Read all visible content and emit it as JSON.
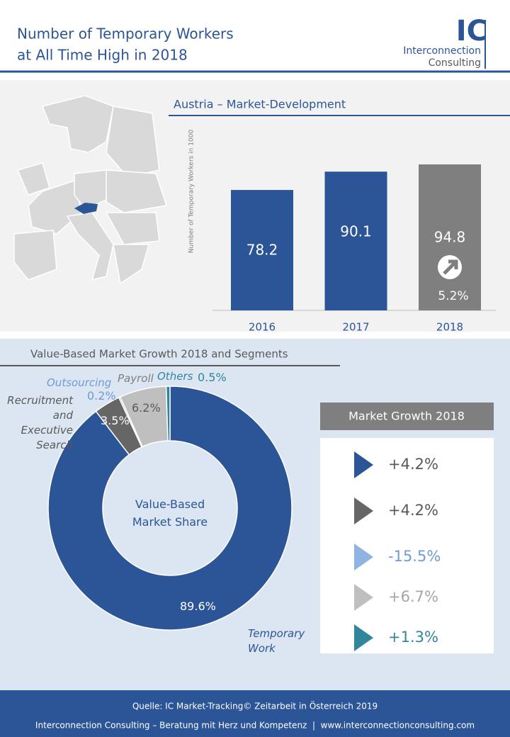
{
  "header": {
    "title_lines": [
      "Number of Temporary Workers",
      "at All Time High in 2018"
    ],
    "logo_mark": "IC",
    "logo_lines": [
      "Interconnection",
      "Consulting"
    ]
  },
  "chart_data": [
    {
      "type": "bar",
      "title": "Austria – Market-Development",
      "y_label": "Number of Temporary Workers in 1000",
      "categories": [
        "2016",
        "2017",
        "2018"
      ],
      "values": [
        78.2,
        90.1,
        94.8
      ],
      "colors": [
        "#2b5597",
        "#2b5597",
        "#7f7f7f"
      ],
      "annotation": "5.2%"
    },
    {
      "type": "pie",
      "title": "Value-Based Market Growth 2018 and Segments",
      "center_label": "Value-Based Market Share",
      "categories": [
        "Temporary Work",
        "Recruitment and Executive Search",
        "Outsourcing",
        "Payroll",
        "Others"
      ],
      "values": [
        89.6,
        3.5,
        0.2,
        6.2,
        0.5
      ],
      "value_labels": [
        "89.6%",
        "3.5%",
        "0.2%",
        "6.2%",
        "0.5%"
      ],
      "colors": [
        "#2b5597",
        "#666666",
        "#8fb4e3",
        "#bfbfbf",
        "#31859c"
      ]
    }
  ],
  "market_growth": {
    "title": "Market Growth 2018",
    "rows": [
      {
        "label": "+4.2%",
        "color": "#2b5597",
        "text_color": "#595959"
      },
      {
        "label": "+4.2%",
        "color": "#666666",
        "text_color": "#595959"
      },
      {
        "label": "-15.5%",
        "color": "#8fb4e3",
        "text_color": "#6f9bd6"
      },
      {
        "label": "+6.7%",
        "color": "#bfbfbf",
        "text_color": "#a6a6a6"
      },
      {
        "label": "+1.3%",
        "color": "#31859c",
        "text_color": "#31859c"
      }
    ]
  },
  "footer": {
    "source": "Quelle: IC Market-Tracking© Zeitarbeit in Österreich 2019",
    "contact": "Interconnection Consulting – Beratung mit Herz und Kompetenz  |  www.interconnectionconsulting.com"
  }
}
